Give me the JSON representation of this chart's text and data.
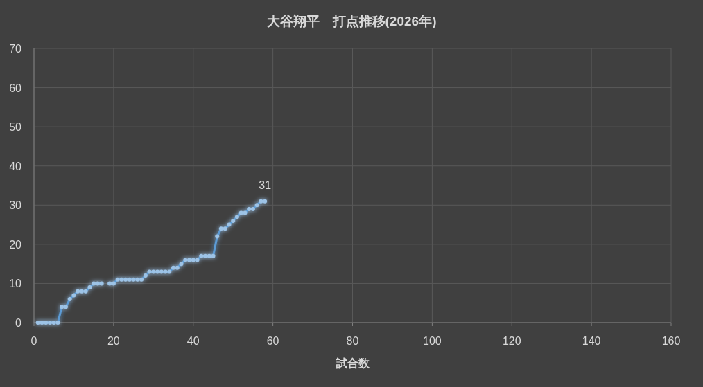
{
  "chart_data": {
    "type": "line",
    "title": "大谷翔平　打点推移(2026年)",
    "xlabel": "試合数",
    "series": [
      {
        "color": "#5b9bd5",
        "x": [
          1,
          2,
          3,
          4,
          5,
          6,
          7,
          8,
          9,
          10,
          11,
          12,
          13,
          14,
          15,
          16,
          17
        ],
        "values": [
          0,
          0,
          0,
          0,
          0,
          0,
          4,
          4,
          6,
          7,
          8,
          8,
          8,
          9,
          10,
          10,
          10
        ]
      },
      {
        "color": "#5b9bd5",
        "x": [
          19,
          20,
          21,
          22,
          23,
          24,
          25,
          26,
          27,
          28,
          29,
          30,
          31,
          32,
          33,
          34,
          35,
          36,
          37,
          38,
          39,
          40,
          41,
          42,
          43,
          44,
          45,
          46,
          47,
          48,
          49,
          50,
          51,
          52,
          53,
          54,
          55,
          56,
          57,
          58
        ],
        "values": [
          10,
          10,
          11,
          11,
          11,
          11,
          11,
          11,
          11,
          12,
          13,
          13,
          13,
          13,
          13,
          13,
          14,
          14,
          15,
          16,
          16,
          16,
          16,
          17,
          17,
          17,
          17,
          22,
          24,
          24,
          25,
          26,
          27,
          28,
          28,
          29,
          29,
          30,
          31,
          31
        ]
      }
    ],
    "xlim": [
      0,
      160
    ],
    "xticks": [
      0,
      20,
      40,
      60,
      80,
      100,
      120,
      140,
      160
    ],
    "ylim": [
      0,
      70
    ],
    "yticks": [
      0,
      10,
      20,
      30,
      40,
      50,
      60,
      70
    ],
    "grid": true,
    "marker": "circle",
    "annotations": [
      {
        "text": "31",
        "x": 58,
        "y": 31
      }
    ]
  }
}
